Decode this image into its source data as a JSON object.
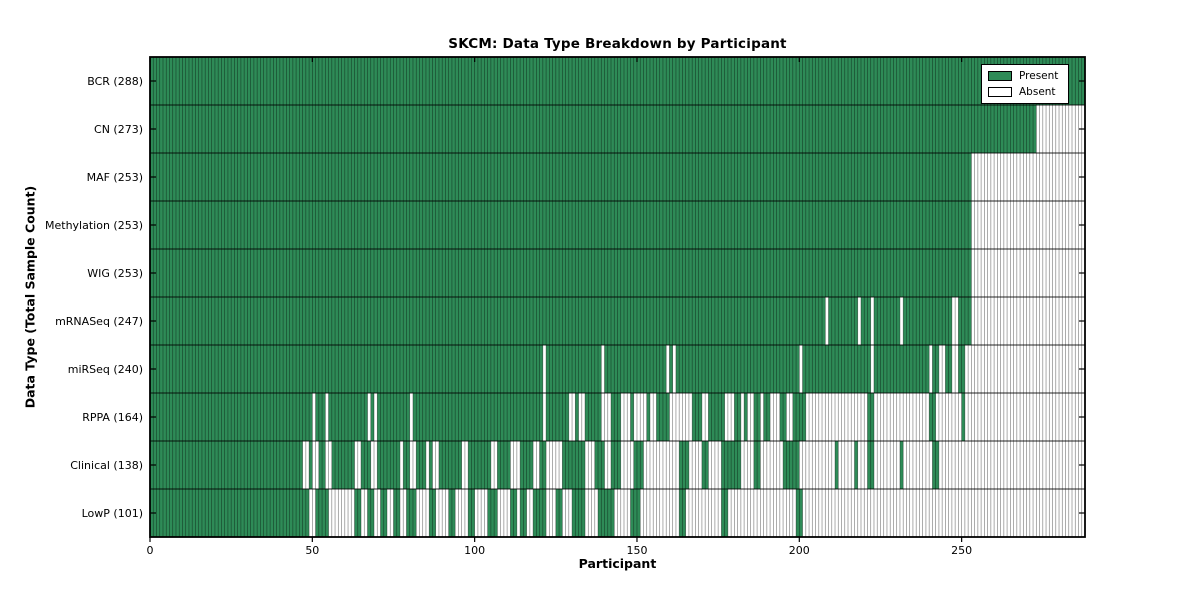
{
  "page": {
    "background": "#ffffff"
  },
  "chart_data": {
    "type": "heatmap",
    "title": "SKCM: Data Type Breakdown by Participant",
    "xlabel": "Participant",
    "ylabel": "Data Type (Total Sample Count)",
    "x_ticks": [
      0,
      50,
      100,
      150,
      200,
      250
    ],
    "xlim": [
      0,
      288
    ],
    "n_participants": 288,
    "grid": false,
    "legend_position": "upper right",
    "colors": {
      "present": "#2e8b57",
      "absent": "#ffffff",
      "cell_edge": "#000000",
      "row_separator": "#000000",
      "border": "#000000"
    },
    "legend": [
      {
        "label": "Present",
        "color": "#2e8b57"
      },
      {
        "label": "Absent",
        "color": "#ffffff"
      }
    ],
    "rows": [
      {
        "label": "BCR",
        "count": 288,
        "display": "BCR (288)",
        "present_ranges": [
          [
            0,
            287
          ]
        ]
      },
      {
        "label": "CN",
        "count": 273,
        "display": "CN (273)",
        "present_ranges": [
          [
            0,
            272
          ]
        ]
      },
      {
        "label": "MAF",
        "count": 253,
        "display": "MAF (253)",
        "present_ranges": [
          [
            0,
            252
          ]
        ]
      },
      {
        "label": "Methylation",
        "count": 253,
        "display": "Methylation (253)",
        "present_ranges": [
          [
            0,
            252
          ]
        ]
      },
      {
        "label": "WIG",
        "count": 253,
        "display": "WIG (253)",
        "present_ranges": [
          [
            0,
            252
          ]
        ]
      },
      {
        "label": "mRNASeq",
        "count": 247,
        "display": "mRNASeq (247)",
        "present_ranges": [
          [
            0,
            207
          ],
          [
            209,
            217
          ],
          [
            219,
            221
          ],
          [
            223,
            230
          ],
          [
            232,
            246
          ],
          [
            249,
            252
          ]
        ]
      },
      {
        "label": "miRSeq",
        "count": 240,
        "display": "miRSeq (240)",
        "present_ranges": [
          [
            0,
            120
          ],
          [
            122,
            138
          ],
          [
            140,
            158
          ],
          [
            160,
            160
          ],
          [
            162,
            199
          ],
          [
            201,
            221
          ],
          [
            223,
            239
          ],
          [
            241,
            242
          ],
          [
            245,
            246
          ],
          [
            249,
            250
          ]
        ]
      },
      {
        "label": "RPPA",
        "count": 164,
        "display": "RPPA (164)",
        "present_ranges": [
          [
            0,
            49
          ],
          [
            51,
            53
          ],
          [
            55,
            66
          ],
          [
            68,
            68
          ],
          [
            70,
            79
          ],
          [
            81,
            120
          ],
          [
            122,
            128
          ],
          [
            131,
            131
          ],
          [
            134,
            138
          ],
          [
            142,
            144
          ],
          [
            148,
            148
          ],
          [
            153,
            153
          ],
          [
            156,
            159
          ],
          [
            167,
            169
          ],
          [
            172,
            176
          ],
          [
            180,
            181
          ],
          [
            183,
            183
          ],
          [
            186,
            187
          ],
          [
            189,
            190
          ],
          [
            194,
            195
          ],
          [
            198,
            201
          ],
          [
            221,
            222
          ],
          [
            240,
            241
          ],
          [
            250,
            250
          ]
        ]
      },
      {
        "label": "Clinical",
        "count": 138,
        "display": "Clinical (138)",
        "present_ranges": [
          [
            0,
            46
          ],
          [
            49,
            49
          ],
          [
            52,
            53
          ],
          [
            56,
            62
          ],
          [
            65,
            67
          ],
          [
            70,
            76
          ],
          [
            78,
            79
          ],
          [
            82,
            84
          ],
          [
            86,
            86
          ],
          [
            89,
            95
          ],
          [
            98,
            104
          ],
          [
            107,
            110
          ],
          [
            114,
            117
          ],
          [
            120,
            121
          ],
          [
            127,
            133
          ],
          [
            137,
            139
          ],
          [
            142,
            144
          ],
          [
            149,
            151
          ],
          [
            163,
            165
          ],
          [
            170,
            171
          ],
          [
            176,
            181
          ],
          [
            186,
            187
          ],
          [
            195,
            199
          ],
          [
            211,
            211
          ],
          [
            217,
            217
          ],
          [
            221,
            222
          ],
          [
            231,
            231
          ],
          [
            241,
            242
          ]
        ]
      },
      {
        "label": "LowP",
        "count": 101,
        "display": "LowP (101)",
        "present_ranges": [
          [
            0,
            48
          ],
          [
            51,
            54
          ],
          [
            63,
            64
          ],
          [
            67,
            68
          ],
          [
            71,
            72
          ],
          [
            75,
            76
          ],
          [
            79,
            81
          ],
          [
            86,
            87
          ],
          [
            92,
            93
          ],
          [
            98,
            99
          ],
          [
            104,
            106
          ],
          [
            111,
            112
          ],
          [
            114,
            115
          ],
          [
            118,
            121
          ],
          [
            125,
            126
          ],
          [
            130,
            133
          ],
          [
            138,
            142
          ],
          [
            148,
            150
          ],
          [
            163,
            164
          ],
          [
            176,
            177
          ],
          [
            199,
            200
          ]
        ]
      }
    ]
  }
}
